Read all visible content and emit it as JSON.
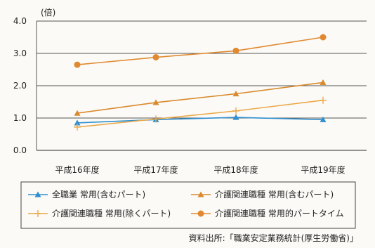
{
  "chart_data": {
    "type": "line",
    "unit_label": "(倍)",
    "categories": [
      "平成16年度",
      "平成17年度",
      "平成18年度",
      "平成19年度"
    ],
    "ylim": [
      0,
      4
    ],
    "yticks": [
      "0.0",
      "1.0",
      "2.0",
      "3.0",
      "4.0"
    ],
    "grid": true,
    "legend_position": "bottom",
    "series": [
      {
        "name": "全職業 常用(含むパート)",
        "values": [
          0.85,
          0.95,
          1.02,
          0.95
        ],
        "color": "#2f8fcf",
        "marker": "triangle-filled"
      },
      {
        "name": "介護関連職種 常用(含むパート)",
        "values": [
          1.15,
          1.48,
          1.75,
          2.1
        ],
        "color": "#d98a2e",
        "marker": "triangle-filled"
      },
      {
        "name": "介護関連職種 常用(除くパート)",
        "values": [
          0.72,
          0.97,
          1.22,
          1.55
        ],
        "color": "#eba84a",
        "marker": "plus"
      },
      {
        "name": "介護関連職種 常用的パートタイム",
        "values": [
          2.65,
          2.88,
          3.08,
          3.5
        ],
        "color": "#e08930",
        "marker": "circle"
      }
    ]
  },
  "source_note": "資料出所:「職業安定業務統計(厚生労働省)」"
}
